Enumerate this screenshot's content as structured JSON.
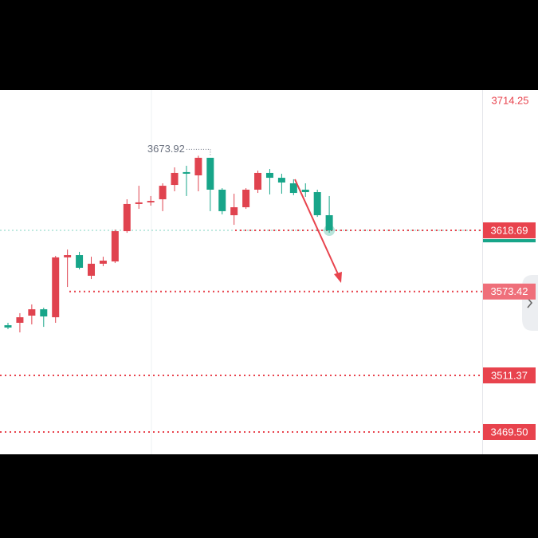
{
  "chart_data": {
    "type": "candlestick",
    "open": [
      3548.5,
      3550.3,
      3555.6,
      3560.3,
      3554.4,
      3598.7,
      3600.4,
      3585.1,
      3594.0,
      3595.7,
      3618.1,
      3638.2,
      3639.4,
      3641.7,
      3652.3,
      3661.8,
      3659.4,
      3672.4,
      3648.8,
      3629.9,
      3635.8,
      3648.8,
      3661.2,
      3657.6,
      3653.5,
      3648.8,
      3647.0,
      3629.9
    ],
    "close": [
      3546.8,
      3554.4,
      3560.3,
      3555.0,
      3598.7,
      3600.4,
      3591.0,
      3594.0,
      3596.3,
      3618.1,
      3638.2,
      3639.4,
      3640.5,
      3651.7,
      3661.2,
      3660.6,
      3672.4,
      3648.8,
      3632.9,
      3635.8,
      3648.8,
      3661.2,
      3657.6,
      3654.1,
      3646.4,
      3647.0,
      3629.9,
      3618.69
    ],
    "high": [
      3550.3,
      3557.4,
      3563.9,
      3561.5,
      3599.8,
      3604.5,
      3602.8,
      3599.2,
      3599.2,
      3619.3,
      3641.7,
      3651.7,
      3644.1,
      3653.5,
      3665.3,
      3666.5,
      3673.92,
      3672.4,
      3649.9,
      3645.8,
      3649.9,
      3662.9,
      3664.1,
      3660.6,
      3656.5,
      3653.5,
      3648.8,
      3644.1
    ],
    "low": [
      3545.6,
      3543.2,
      3549.1,
      3547.3,
      3550.3,
      3576.8,
      3589.8,
      3582.7,
      3592.2,
      3594.5,
      3616.9,
      3634.6,
      3637.0,
      3632.9,
      3647.6,
      3644.1,
      3647.6,
      3632.9,
      3630.5,
      3622.8,
      3634.6,
      3646.4,
      3645.3,
      3645.8,
      3644.7,
      3643.5,
      3628.7,
      3616.9
    ],
    "up_color": "#e0434f",
    "down_color": "#17a589",
    "ylim": [
      3452.98,
      3722.51
    ],
    "yticks": [
      3714.25
    ],
    "price_lines": [
      3618.69,
      3573.42,
      3511.37,
      {
        "value": 3469.5,
        "label": "3469.50"
      }
    ],
    "price_line_color": "#e8434d"
  }
}
